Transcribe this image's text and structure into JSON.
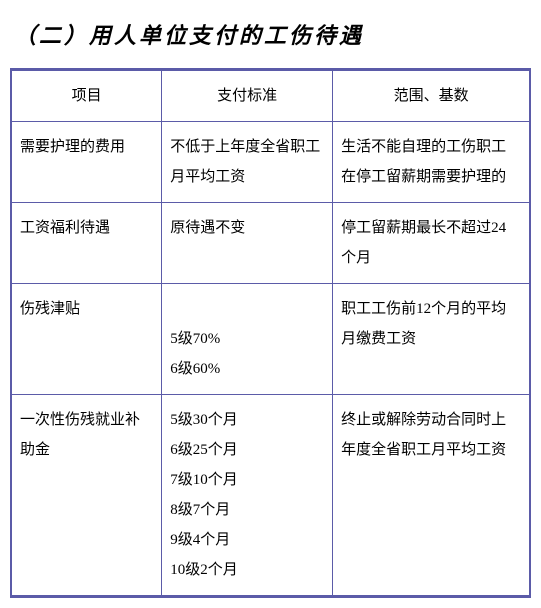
{
  "title": "（二）用人单位支付的工伤待遇",
  "table": {
    "columns": [
      "项目",
      "支付标准",
      "范围、基数"
    ],
    "rows": [
      {
        "c1": "需要护理的费用",
        "c2": "不低于上年度全省职工月平均工资",
        "c3": "生活不能自理的工伤职工在停工留薪期需要护理的"
      },
      {
        "c1": "工资福利待遇",
        "c2": "原待遇不变",
        "c3": "停工留薪期最长不超过24个月"
      },
      {
        "c1": "伤残津贴",
        "c2": "\n5级70%\n6级60%\n",
        "c3": "职工工伤前12个月的平均月缴费工资"
      },
      {
        "c1": "一次性伤残就业补助金",
        "c2": "5级30个月\n6级25个月\n7级10个月\n8级7个月\n9级4个月\n10级2个月",
        "c3": "终止或解除劳动合同时上年度全省职工月平均工资"
      }
    ]
  },
  "colors": {
    "border": "#5b5ba8",
    "text": "#000000",
    "background": "#ffffff"
  }
}
